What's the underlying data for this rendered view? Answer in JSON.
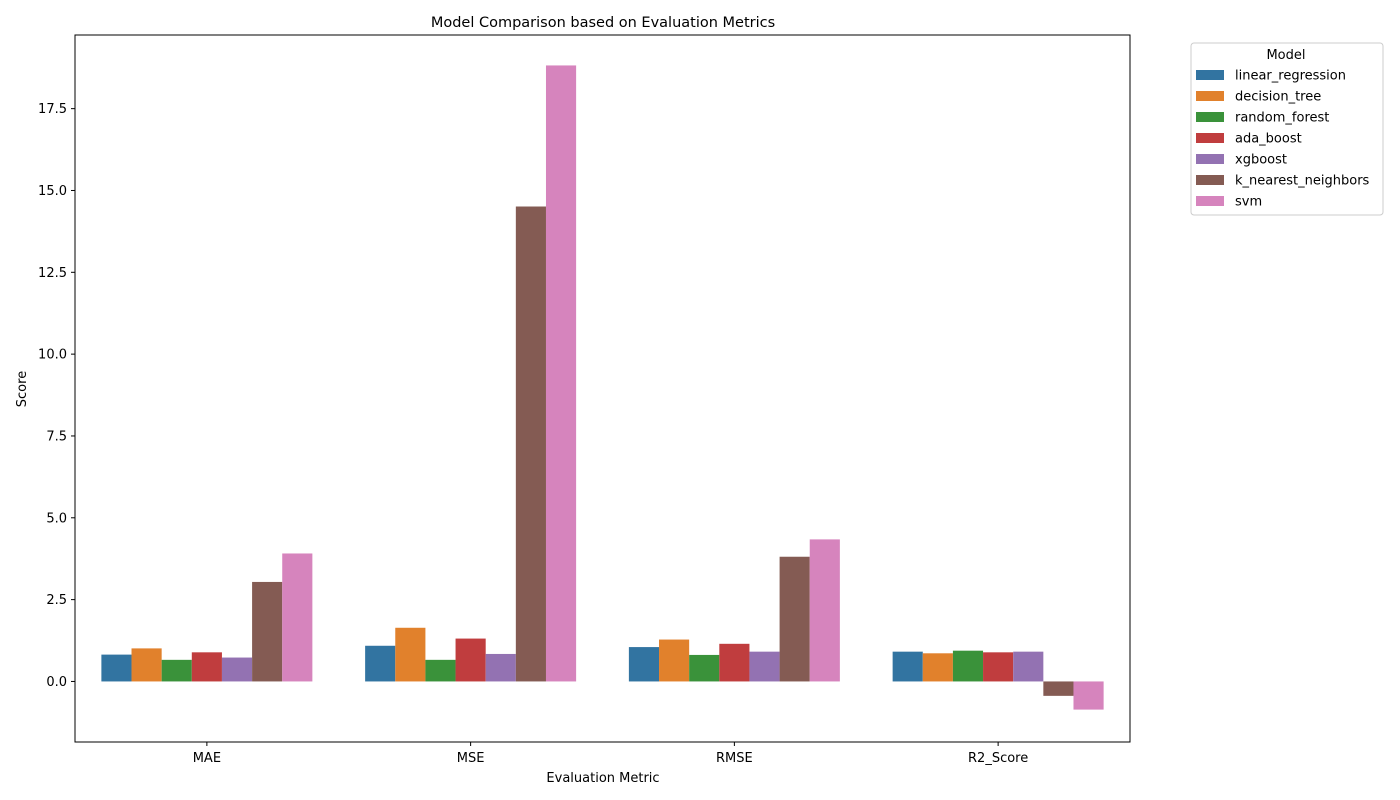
{
  "chart_data": {
    "type": "bar",
    "title": "Model Comparison based on Evaluation Metrics",
    "xlabel": "Evaluation Metric",
    "ylabel": "Score",
    "categories": [
      "MAE",
      "MSE",
      "RMSE",
      "R2_Score"
    ],
    "yticks": [
      "0.0",
      "2.5",
      "5.0",
      "7.5",
      "10.0",
      "12.5",
      "15.0",
      "17.5"
    ],
    "ylim": [
      -1.85,
      19.75
    ],
    "grid": false,
    "legend": {
      "title": "Model",
      "placement": "outside-top-right"
    },
    "series": [
      {
        "name": "linear_regression",
        "color": "#3274a1",
        "values": [
          0.82,
          1.09,
          1.05,
          0.91
        ]
      },
      {
        "name": "decision_tree",
        "color": "#e1812c",
        "values": [
          1.01,
          1.64,
          1.28,
          0.86
        ]
      },
      {
        "name": "random_forest",
        "color": "#3a923a",
        "values": [
          0.66,
          0.66,
          0.81,
          0.94
        ]
      },
      {
        "name": "ada_boost",
        "color": "#c03d3e",
        "values": [
          0.89,
          1.31,
          1.15,
          0.89
        ]
      },
      {
        "name": "xgboost",
        "color": "#9372b2",
        "values": [
          0.73,
          0.84,
          0.91,
          0.91
        ]
      },
      {
        "name": "k_nearest_neighbors",
        "color": "#845b53",
        "values": [
          3.04,
          14.51,
          3.81,
          -0.44
        ]
      },
      {
        "name": "svm",
        "color": "#d684bd",
        "values": [
          3.91,
          18.82,
          4.34,
          -0.86
        ]
      }
    ]
  }
}
